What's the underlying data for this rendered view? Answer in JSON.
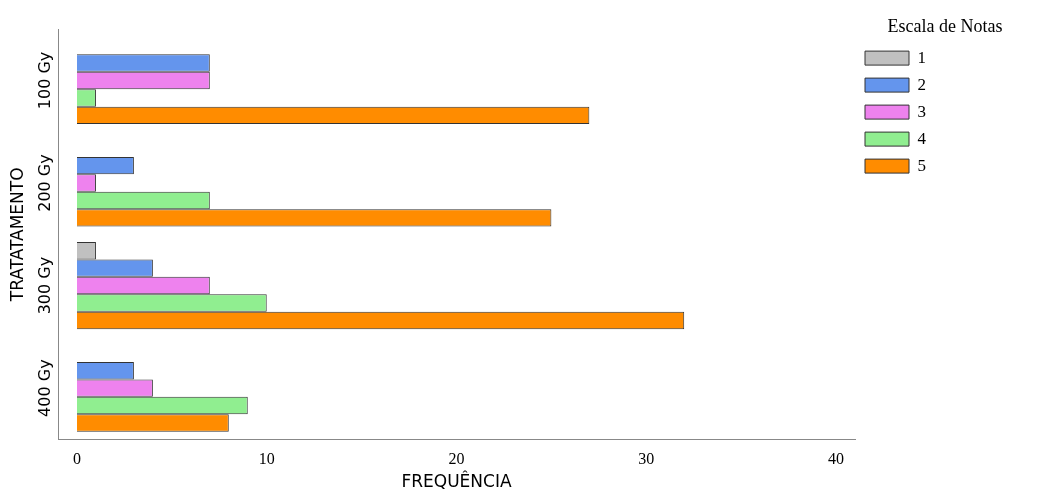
{
  "chart_data": {
    "type": "bar",
    "orientation": "horizontal",
    "xlabel": "FREQUÊNCIA",
    "ylabel": "TRATATAMENTO",
    "legend_title": "Escala de Notas",
    "legend": "right",
    "categories": [
      "100 Gy",
      "200 Gy",
      "300 Gy",
      "400 Gy"
    ],
    "series": [
      {
        "name": "1",
        "color": "#c0c0c0",
        "values": [
          0,
          0,
          1,
          0
        ]
      },
      {
        "name": "2",
        "color": "#6495ed",
        "values": [
          7,
          3,
          4,
          3
        ]
      },
      {
        "name": "3",
        "color": "#ee82ee",
        "values": [
          7,
          1,
          7,
          4
        ]
      },
      {
        "name": "4",
        "color": "#90ee90",
        "values": [
          1,
          7,
          10,
          9
        ]
      },
      {
        "name": "5",
        "color": "#ff8c00",
        "values": [
          27,
          25,
          32,
          8
        ]
      }
    ],
    "xlim": [
      -1,
      41
    ],
    "xticks": [
      0,
      10,
      20,
      30,
      40
    ],
    "grid": false
  }
}
